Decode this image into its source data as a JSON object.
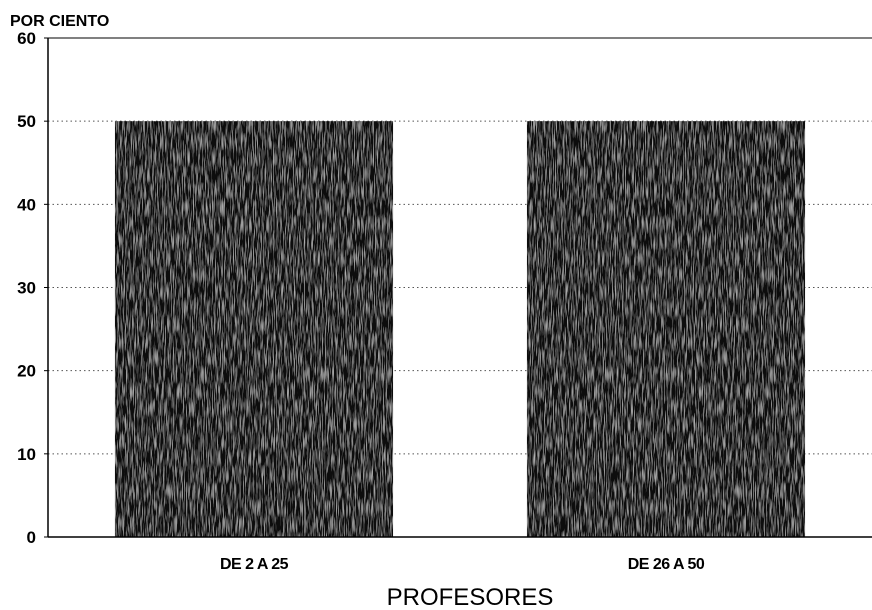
{
  "chart_data": {
    "type": "bar",
    "ylabel": "POR CIENTO",
    "xlabel": "PROFESORES",
    "categories": [
      "DE 2 A 25",
      "DE 26 A 50"
    ],
    "values": [
      50,
      50
    ],
    "ylim": [
      0,
      60
    ],
    "yticks": [
      "0",
      "10",
      "20",
      "30",
      "40",
      "50",
      "60"
    ],
    "grid": "dotted horizontal",
    "bar_color": "#111111"
  }
}
